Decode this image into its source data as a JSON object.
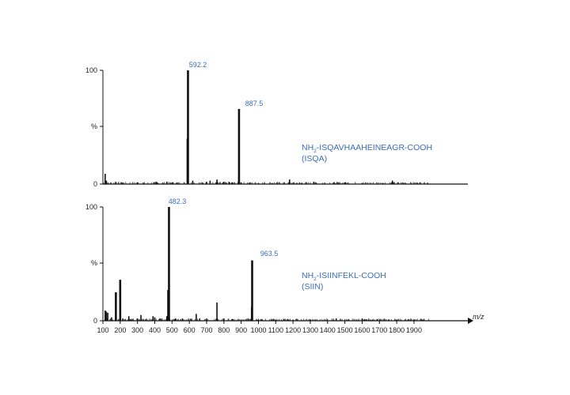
{
  "chart_data": [
    {
      "type": "bar",
      "ylabel": "%",
      "ylim": [
        0,
        100
      ],
      "yticks": [
        "100",
        "%",
        "0"
      ],
      "xlim": [
        100,
        1990
      ],
      "peptide": {
        "prefix": "NH",
        "sub": "2",
        "suffix": "-ISQAVHAAHEINEAGR-COOH"
      },
      "peptide_short": "(ISQA)",
      "labeled_peaks": [
        {
          "x": 592.2,
          "y": 100,
          "label": "592.2"
        },
        {
          "x": 887.5,
          "y": 66,
          "label": "887.5"
        }
      ],
      "peaks": [
        {
          "x": 113,
          "y": 9
        },
        {
          "x": 120,
          "y": 3
        },
        {
          "x": 175,
          "y": 2
        },
        {
          "x": 210,
          "y": 1.5
        },
        {
          "x": 300,
          "y": 1.5
        },
        {
          "x": 410,
          "y": 2
        },
        {
          "x": 470,
          "y": 2
        },
        {
          "x": 500,
          "y": 1.5
        },
        {
          "x": 590,
          "y": 40
        },
        {
          "x": 592.2,
          "y": 100
        },
        {
          "x": 620,
          "y": 3
        },
        {
          "x": 700,
          "y": 2
        },
        {
          "x": 720,
          "y": 3
        },
        {
          "x": 760,
          "y": 4
        },
        {
          "x": 800,
          "y": 2
        },
        {
          "x": 830,
          "y": 2
        },
        {
          "x": 850,
          "y": 1.5
        },
        {
          "x": 887.5,
          "y": 66
        },
        {
          "x": 900,
          "y": 1.5
        },
        {
          "x": 950,
          "y": 1
        },
        {
          "x": 1000,
          "y": 1
        },
        {
          "x": 1080,
          "y": 1
        },
        {
          "x": 1180,
          "y": 4
        },
        {
          "x": 1250,
          "y": 1
        },
        {
          "x": 1320,
          "y": 2
        },
        {
          "x": 1440,
          "y": 1
        },
        {
          "x": 1500,
          "y": 1.5
        },
        {
          "x": 1600,
          "y": 1
        },
        {
          "x": 1720,
          "y": 1
        },
        {
          "x": 1775,
          "y": 3
        },
        {
          "x": 1850,
          "y": 1
        },
        {
          "x": 1920,
          "y": 1
        },
        {
          "x": 1960,
          "y": 1
        }
      ]
    },
    {
      "type": "bar",
      "ylabel": "%",
      "ylim": [
        0,
        100
      ],
      "yticks": [
        "100",
        "%",
        "0"
      ],
      "xlim": [
        100,
        1990
      ],
      "xlabel": "m/z",
      "xticks": [
        100,
        200,
        300,
        400,
        500,
        600,
        700,
        800,
        900,
        1000,
        1100,
        1200,
        1300,
        1400,
        1500,
        1600,
        1700,
        1800,
        1900
      ],
      "peptide": {
        "prefix": "NH",
        "sub": "2",
        "suffix": "-ISIINFEKL-COOH"
      },
      "peptide_short": "(SIIN)",
      "labeled_peaks": [
        {
          "x": 482.3,
          "y": 100,
          "label": "482.3"
        },
        {
          "x": 963.5,
          "y": 53,
          "label": "963.5"
        }
      ],
      "peaks": [
        {
          "x": 113,
          "y": 9
        },
        {
          "x": 120,
          "y": 8
        },
        {
          "x": 128,
          "y": 7
        },
        {
          "x": 150,
          "y": 3
        },
        {
          "x": 175,
          "y": 25
        },
        {
          "x": 200,
          "y": 36
        },
        {
          "x": 215,
          "y": 2
        },
        {
          "x": 250,
          "y": 4
        },
        {
          "x": 300,
          "y": 2
        },
        {
          "x": 320,
          "y": 5
        },
        {
          "x": 390,
          "y": 4
        },
        {
          "x": 400,
          "y": 3
        },
        {
          "x": 430,
          "y": 2
        },
        {
          "x": 470,
          "y": 4
        },
        {
          "x": 478,
          "y": 27
        },
        {
          "x": 482.3,
          "y": 100
        },
        {
          "x": 520,
          "y": 2
        },
        {
          "x": 560,
          "y": 2
        },
        {
          "x": 640,
          "y": 6
        },
        {
          "x": 660,
          "y": 2
        },
        {
          "x": 700,
          "y": 2
        },
        {
          "x": 760,
          "y": 16
        },
        {
          "x": 800,
          "y": 2
        },
        {
          "x": 850,
          "y": 1.5
        },
        {
          "x": 940,
          "y": 2
        },
        {
          "x": 960,
          "y": 12
        },
        {
          "x": 963.5,
          "y": 53
        },
        {
          "x": 1000,
          "y": 1
        },
        {
          "x": 1100,
          "y": 1
        },
        {
          "x": 1200,
          "y": 1
        },
        {
          "x": 1300,
          "y": 1
        },
        {
          "x": 1450,
          "y": 2
        },
        {
          "x": 1600,
          "y": 2
        },
        {
          "x": 1650,
          "y": 1
        },
        {
          "x": 1800,
          "y": 1
        },
        {
          "x": 1900,
          "y": 1
        },
        {
          "x": 1950,
          "y": 1
        }
      ]
    }
  ]
}
